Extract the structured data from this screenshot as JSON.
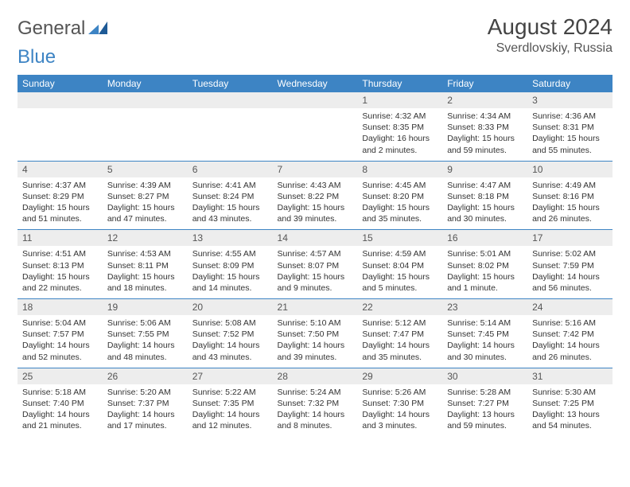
{
  "brand": {
    "word1": "General",
    "word2": "Blue"
  },
  "title": "August 2024",
  "location": "Sverdlovskiy, Russia",
  "colors": {
    "header_bg": "#3d84c4",
    "header_text": "#ffffff",
    "daynum_bg": "#ededed",
    "row_divider": "#3d84c4",
    "body_text": "#333333",
    "title_text": "#444444"
  },
  "day_headers": [
    "Sunday",
    "Monday",
    "Tuesday",
    "Wednesday",
    "Thursday",
    "Friday",
    "Saturday"
  ],
  "weeks": [
    [
      {
        "n": "",
        "sr": "",
        "ss": "",
        "dl": ""
      },
      {
        "n": "",
        "sr": "",
        "ss": "",
        "dl": ""
      },
      {
        "n": "",
        "sr": "",
        "ss": "",
        "dl": ""
      },
      {
        "n": "",
        "sr": "",
        "ss": "",
        "dl": ""
      },
      {
        "n": "1",
        "sr": "Sunrise: 4:32 AM",
        "ss": "Sunset: 8:35 PM",
        "dl": "Daylight: 16 hours and 2 minutes."
      },
      {
        "n": "2",
        "sr": "Sunrise: 4:34 AM",
        "ss": "Sunset: 8:33 PM",
        "dl": "Daylight: 15 hours and 59 minutes."
      },
      {
        "n": "3",
        "sr": "Sunrise: 4:36 AM",
        "ss": "Sunset: 8:31 PM",
        "dl": "Daylight: 15 hours and 55 minutes."
      }
    ],
    [
      {
        "n": "4",
        "sr": "Sunrise: 4:37 AM",
        "ss": "Sunset: 8:29 PM",
        "dl": "Daylight: 15 hours and 51 minutes."
      },
      {
        "n": "5",
        "sr": "Sunrise: 4:39 AM",
        "ss": "Sunset: 8:27 PM",
        "dl": "Daylight: 15 hours and 47 minutes."
      },
      {
        "n": "6",
        "sr": "Sunrise: 4:41 AM",
        "ss": "Sunset: 8:24 PM",
        "dl": "Daylight: 15 hours and 43 minutes."
      },
      {
        "n": "7",
        "sr": "Sunrise: 4:43 AM",
        "ss": "Sunset: 8:22 PM",
        "dl": "Daylight: 15 hours and 39 minutes."
      },
      {
        "n": "8",
        "sr": "Sunrise: 4:45 AM",
        "ss": "Sunset: 8:20 PM",
        "dl": "Daylight: 15 hours and 35 minutes."
      },
      {
        "n": "9",
        "sr": "Sunrise: 4:47 AM",
        "ss": "Sunset: 8:18 PM",
        "dl": "Daylight: 15 hours and 30 minutes."
      },
      {
        "n": "10",
        "sr": "Sunrise: 4:49 AM",
        "ss": "Sunset: 8:16 PM",
        "dl": "Daylight: 15 hours and 26 minutes."
      }
    ],
    [
      {
        "n": "11",
        "sr": "Sunrise: 4:51 AM",
        "ss": "Sunset: 8:13 PM",
        "dl": "Daylight: 15 hours and 22 minutes."
      },
      {
        "n": "12",
        "sr": "Sunrise: 4:53 AM",
        "ss": "Sunset: 8:11 PM",
        "dl": "Daylight: 15 hours and 18 minutes."
      },
      {
        "n": "13",
        "sr": "Sunrise: 4:55 AM",
        "ss": "Sunset: 8:09 PM",
        "dl": "Daylight: 15 hours and 14 minutes."
      },
      {
        "n": "14",
        "sr": "Sunrise: 4:57 AM",
        "ss": "Sunset: 8:07 PM",
        "dl": "Daylight: 15 hours and 9 minutes."
      },
      {
        "n": "15",
        "sr": "Sunrise: 4:59 AM",
        "ss": "Sunset: 8:04 PM",
        "dl": "Daylight: 15 hours and 5 minutes."
      },
      {
        "n": "16",
        "sr": "Sunrise: 5:01 AM",
        "ss": "Sunset: 8:02 PM",
        "dl": "Daylight: 15 hours and 1 minute."
      },
      {
        "n": "17",
        "sr": "Sunrise: 5:02 AM",
        "ss": "Sunset: 7:59 PM",
        "dl": "Daylight: 14 hours and 56 minutes."
      }
    ],
    [
      {
        "n": "18",
        "sr": "Sunrise: 5:04 AM",
        "ss": "Sunset: 7:57 PM",
        "dl": "Daylight: 14 hours and 52 minutes."
      },
      {
        "n": "19",
        "sr": "Sunrise: 5:06 AM",
        "ss": "Sunset: 7:55 PM",
        "dl": "Daylight: 14 hours and 48 minutes."
      },
      {
        "n": "20",
        "sr": "Sunrise: 5:08 AM",
        "ss": "Sunset: 7:52 PM",
        "dl": "Daylight: 14 hours and 43 minutes."
      },
      {
        "n": "21",
        "sr": "Sunrise: 5:10 AM",
        "ss": "Sunset: 7:50 PM",
        "dl": "Daylight: 14 hours and 39 minutes."
      },
      {
        "n": "22",
        "sr": "Sunrise: 5:12 AM",
        "ss": "Sunset: 7:47 PM",
        "dl": "Daylight: 14 hours and 35 minutes."
      },
      {
        "n": "23",
        "sr": "Sunrise: 5:14 AM",
        "ss": "Sunset: 7:45 PM",
        "dl": "Daylight: 14 hours and 30 minutes."
      },
      {
        "n": "24",
        "sr": "Sunrise: 5:16 AM",
        "ss": "Sunset: 7:42 PM",
        "dl": "Daylight: 14 hours and 26 minutes."
      }
    ],
    [
      {
        "n": "25",
        "sr": "Sunrise: 5:18 AM",
        "ss": "Sunset: 7:40 PM",
        "dl": "Daylight: 14 hours and 21 minutes."
      },
      {
        "n": "26",
        "sr": "Sunrise: 5:20 AM",
        "ss": "Sunset: 7:37 PM",
        "dl": "Daylight: 14 hours and 17 minutes."
      },
      {
        "n": "27",
        "sr": "Sunrise: 5:22 AM",
        "ss": "Sunset: 7:35 PM",
        "dl": "Daylight: 14 hours and 12 minutes."
      },
      {
        "n": "28",
        "sr": "Sunrise: 5:24 AM",
        "ss": "Sunset: 7:32 PM",
        "dl": "Daylight: 14 hours and 8 minutes."
      },
      {
        "n": "29",
        "sr": "Sunrise: 5:26 AM",
        "ss": "Sunset: 7:30 PM",
        "dl": "Daylight: 14 hours and 3 minutes."
      },
      {
        "n": "30",
        "sr": "Sunrise: 5:28 AM",
        "ss": "Sunset: 7:27 PM",
        "dl": "Daylight: 13 hours and 59 minutes."
      },
      {
        "n": "31",
        "sr": "Sunrise: 5:30 AM",
        "ss": "Sunset: 7:25 PM",
        "dl": "Daylight: 13 hours and 54 minutes."
      }
    ]
  ]
}
